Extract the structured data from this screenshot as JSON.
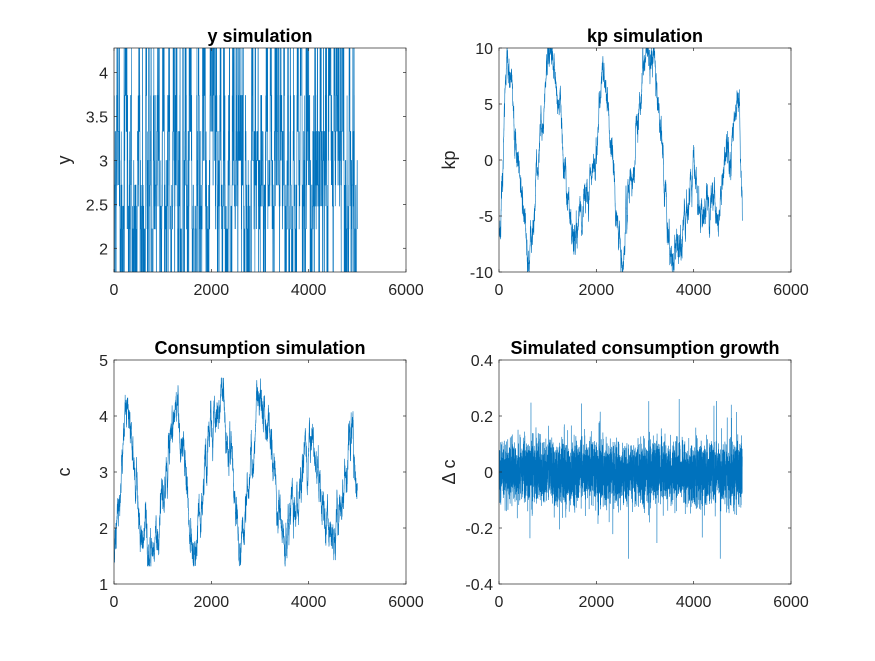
{
  "figure": {
    "line_color": "#0072BD",
    "axes_color": "#262626"
  },
  "chart_data": [
    {
      "type": "line",
      "title": "y simulation",
      "xlabel": "",
      "ylabel": "y",
      "xlim": [
        0,
        6000
      ],
      "ylim": [
        1.73,
        4.28
      ],
      "xticks": [
        0,
        2000,
        4000,
        6000
      ],
      "xtick_labels": [
        "0",
        "2000",
        "4000",
        "6000"
      ],
      "yticks": [
        2,
        2.5,
        3,
        3.5,
        4
      ],
      "ytick_labels": [
        "2",
        "2.5",
        "3",
        "3.5",
        "4"
      ],
      "grid": false,
      "series": [
        {
          "n_points": 5000,
          "model": "discrete-markov",
          "states": [
            1.73,
            2.22,
            2.48,
            2.72,
            3.0,
            3.33,
            3.74,
            4.28
          ],
          "persistence": 0.4,
          "seed": 11
        }
      ]
    },
    {
      "type": "line",
      "title": "kp simulation",
      "xlabel": "",
      "ylabel": "kp",
      "xlim": [
        0,
        6000
      ],
      "ylim": [
        -10,
        10
      ],
      "xticks": [
        0,
        2000,
        4000,
        6000
      ],
      "xtick_labels": [
        "0",
        "2000",
        "4000",
        "6000"
      ],
      "yticks": [
        -10,
        -5,
        0,
        5,
        10
      ],
      "ytick_labels": [
        "-10",
        "-5",
        "0",
        "5",
        "10"
      ],
      "grid": false,
      "series": [
        {
          "n_points": 5000,
          "model": "bounded-random-walk",
          "start": 0,
          "step": 0.35,
          "bounds": [
            -10,
            10
          ],
          "seed": 23,
          "anchors": [
            [
              0,
              -6
            ],
            [
              150,
              9
            ],
            [
              600,
              -10
            ],
            [
              1000,
              9.5
            ],
            [
              1300,
              2
            ],
            [
              1500,
              -9
            ],
            [
              2000,
              2
            ],
            [
              2100,
              9.5
            ],
            [
              2500,
              -10
            ],
            [
              3000,
              10
            ],
            [
              3200,
              9
            ],
            [
              3500,
              -9.5
            ],
            [
              4000,
              -2
            ],
            [
              4500,
              -5
            ],
            [
              4900,
              6.5
            ],
            [
              5000,
              -7
            ]
          ]
        }
      ]
    },
    {
      "type": "line",
      "title": "Consumption simulation",
      "xlabel": "",
      "ylabel": "c",
      "xlim": [
        0,
        6000
      ],
      "ylim": [
        1,
        5
      ],
      "xticks": [
        0,
        2000,
        4000,
        6000
      ],
      "xtick_labels": [
        "0",
        "2000",
        "4000",
        "6000"
      ],
      "yticks": [
        1,
        2,
        3,
        4,
        5
      ],
      "ytick_labels": [
        "1",
        "2",
        "3",
        "4",
        "5"
      ],
      "grid": false,
      "series": [
        {
          "n_points": 5000,
          "model": "bounded-random-walk",
          "step": 0.08,
          "bounds": [
            1.32,
            4.68
          ],
          "seed": 37,
          "anchors": [
            [
              0,
              1.5
            ],
            [
              200,
              4.2
            ],
            [
              700,
              1.4
            ],
            [
              1300,
              4.2
            ],
            [
              1600,
              1.4
            ],
            [
              2200,
              4.6
            ],
            [
              2600,
              1.4
            ],
            [
              3000,
              4.6
            ],
            [
              3500,
              1.4
            ],
            [
              4000,
              3.5
            ],
            [
              4500,
              1.5
            ],
            [
              4900,
              3.6
            ],
            [
              5000,
              2.1
            ]
          ]
        }
      ]
    },
    {
      "type": "line",
      "title": "Simulated consumption growth",
      "xlabel": "",
      "ylabel": "Δ c",
      "xlim": [
        0,
        6000
      ],
      "ylim": [
        -0.4,
        0.4
      ],
      "xticks": [
        0,
        2000,
        4000,
        6000
      ],
      "xtick_labels": [
        "0",
        "2000",
        "4000",
        "6000"
      ],
      "yticks": [
        -0.4,
        -0.2,
        0,
        0.2,
        0.4
      ],
      "ytick_labels": [
        "-0.4",
        "-0.2",
        "0",
        "0.2",
        "0.4"
      ],
      "grid": false,
      "series": [
        {
          "n_points": 5000,
          "model": "white-noise",
          "sd": 0.055,
          "bounds": [
            -0.31,
            0.31
          ],
          "seed": 53
        }
      ]
    }
  ]
}
